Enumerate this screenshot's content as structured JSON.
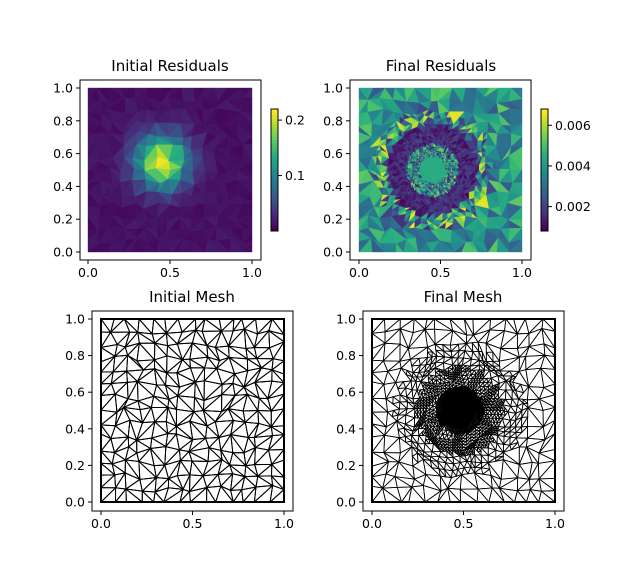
{
  "figure": {
    "background": "#ffffff"
  },
  "chart_data": [
    {
      "type": "heatmap",
      "title": "Initial Residuals",
      "xlim": [
        0,
        1
      ],
      "ylim": [
        0,
        1
      ],
      "xticks": [
        "0.0",
        "0.5",
        "1.0"
      ],
      "yticks": [
        "0.0",
        "0.2",
        "0.4",
        "0.6",
        "0.8",
        "1.0"
      ],
      "colorbar": {
        "range": [
          0.0,
          0.22
        ],
        "ticks": [
          "0.1",
          "0.2"
        ],
        "tick_values": [
          0.1,
          0.2
        ]
      },
      "colormap": "viridis",
      "field": {
        "peak": [
          0.45,
          0.55
        ],
        "peak_value": 0.22,
        "background": 0.01,
        "spread": 0.11
      }
    },
    {
      "type": "heatmap",
      "title": "Final Residuals",
      "xlim": [
        0,
        1
      ],
      "ylim": [
        0,
        1
      ],
      "xticks": [
        "0.0",
        "0.5",
        "1.0"
      ],
      "yticks": [
        "0.0",
        "0.2",
        "0.4",
        "0.6",
        "0.8",
        "1.0"
      ],
      "colorbar": {
        "range": [
          0.0008,
          0.0068
        ],
        "ticks": [
          "0.002",
          "0.004",
          "0.006"
        ],
        "tick_values": [
          0.002,
          0.004,
          0.006
        ]
      },
      "colormap": "viridis",
      "field": {
        "center": [
          0.45,
          0.5
        ],
        "low_region": [
          [
            0.22,
            0.25
          ],
          [
            0.72,
            0.8
          ]
        ],
        "high_value": 0.0068,
        "low_value": 0.001
      }
    },
    {
      "type": "mesh",
      "title": "Initial Mesh",
      "xlim": [
        0,
        1
      ],
      "ylim": [
        0,
        1
      ],
      "xticks": [
        "0.0",
        "0.5",
        "1.0"
      ],
      "yticks": [
        "0.0",
        "0.2",
        "0.4",
        "0.6",
        "0.8",
        "1.0"
      ],
      "grid_resolution": 14,
      "line_color": "#000000"
    },
    {
      "type": "mesh",
      "title": "Final Mesh",
      "xlim": [
        0,
        1
      ],
      "ylim": [
        0,
        1
      ],
      "xticks": [
        "0.0",
        "0.5",
        "1.0"
      ],
      "yticks": [
        "0.0",
        "0.2",
        "0.4",
        "0.6",
        "0.8",
        "1.0"
      ],
      "grid_resolution": 14,
      "refined_center": [
        0.48,
        0.5
      ],
      "line_color": "#000000"
    }
  ]
}
